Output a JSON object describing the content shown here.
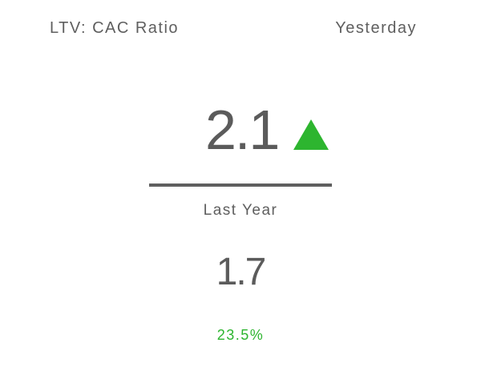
{
  "widget": {
    "title": "LTV: CAC Ratio",
    "period": "Yesterday",
    "current_value": "2.1",
    "trend_icon": "triangle-up-icon",
    "comparison_label": "Last Year",
    "previous_value": "1.7",
    "change_percent": "23.5%",
    "colors": {
      "text": "#5f5f5f",
      "positive": "#2db52f",
      "divider": "#5f5f5f",
      "background": "#ffffff"
    }
  }
}
